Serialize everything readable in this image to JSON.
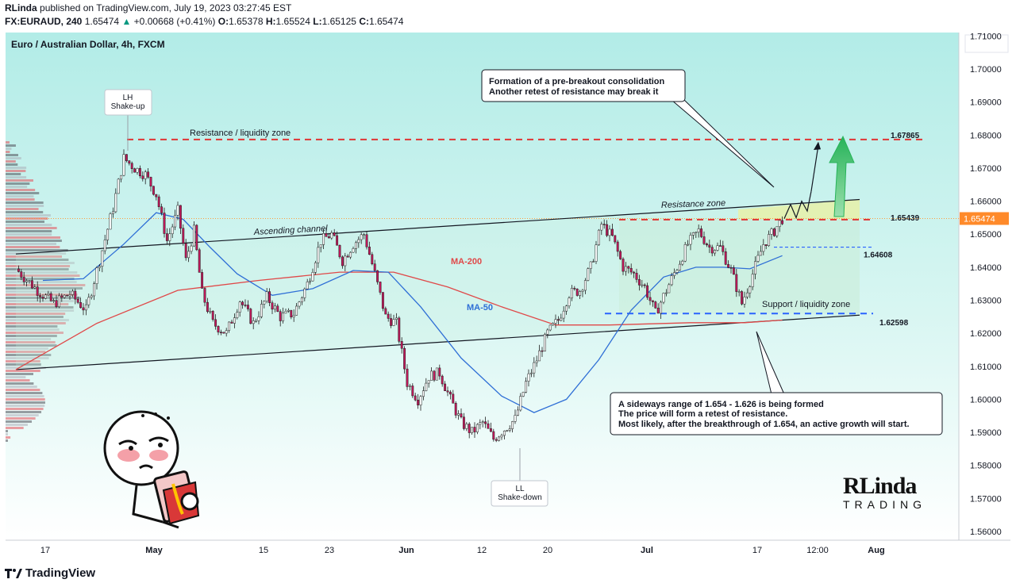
{
  "header": {
    "author": "RLinda",
    "published_text": "published on TradingView.com, July 19, 2023 03:27:45 EST",
    "symbol": "FX:EURAUD, 240",
    "last": "1.65474",
    "change": "+0.00668 (+0.41%)",
    "o_label": "O:",
    "o": "1.65378",
    "h_label": "H:",
    "h": "1.65524",
    "l_label": "L:",
    "l": "1.65125",
    "c_label": "C:",
    "c": "1.65474"
  },
  "footer": {
    "brand": "TradingView"
  },
  "logo": {
    "text_top": "RLinda",
    "text_bottom": "TRADING"
  },
  "chart_data": {
    "type": "candlestick",
    "title": "Euro / Australian Dollar, 4h, FXCM",
    "y_range": [
      1.555,
      1.715
    ],
    "y_ticks": [
      "1.71000",
      "1.70000",
      "1.69000",
      "1.68000",
      "1.67000",
      "1.66000",
      "1.65000",
      "1.64000",
      "1.63000",
      "1.62000",
      "1.61000",
      "1.60000",
      "1.59000",
      "1.58000",
      "1.57000",
      "1.56000"
    ],
    "x_ticks": [
      "17",
      "May",
      "15",
      "23",
      "Jun",
      "12",
      "20",
      "Jul",
      "17",
      "12:00",
      "Aug"
    ],
    "current_price": "1.65474",
    "levels": [
      {
        "name": "resistance",
        "value": "1.67865",
        "color": "#e03535"
      },
      {
        "name": "breakout",
        "value": "1.65439",
        "color": "#e03535"
      },
      {
        "name": "mid",
        "value": "1.64608",
        "color": "#2962ff"
      },
      {
        "name": "support",
        "value": "1.62598",
        "color": "#2962ff"
      }
    ],
    "anchor_points": [
      {
        "t": 0,
        "p": 1.6395
      },
      {
        "t": 8,
        "p": 1.633
      },
      {
        "t": 14,
        "p": 1.629
      },
      {
        "t": 20,
        "p": 1.632
      },
      {
        "t": 26,
        "p": 1.627
      },
      {
        "t": 31,
        "p": 1.642
      },
      {
        "t": 36,
        "p": 1.658
      },
      {
        "t": 40,
        "p": 1.673
      },
      {
        "t": 44,
        "p": 1.67
      },
      {
        "t": 48,
        "p": 1.668
      },
      {
        "t": 52,
        "p": 1.662
      },
      {
        "t": 56,
        "p": 1.648
      },
      {
        "t": 60,
        "p": 1.657
      },
      {
        "t": 63,
        "p": 1.642
      },
      {
        "t": 66,
        "p": 1.651
      },
      {
        "t": 69,
        "p": 1.632
      },
      {
        "t": 73,
        "p": 1.623
      },
      {
        "t": 78,
        "p": 1.62
      },
      {
        "t": 83,
        "p": 1.63
      },
      {
        "t": 88,
        "p": 1.623
      },
      {
        "t": 93,
        "p": 1.631
      },
      {
        "t": 98,
        "p": 1.625
      },
      {
        "t": 103,
        "p": 1.626
      },
      {
        "t": 108,
        "p": 1.635
      },
      {
        "t": 113,
        "p": 1.648
      },
      {
        "t": 117,
        "p": 1.65
      },
      {
        "t": 121,
        "p": 1.642
      },
      {
        "t": 125,
        "p": 1.647
      },
      {
        "t": 129,
        "p": 1.65
      },
      {
        "t": 133,
        "p": 1.638
      },
      {
        "t": 137,
        "p": 1.625
      },
      {
        "t": 141,
        "p": 1.623
      },
      {
        "t": 145,
        "p": 1.605
      },
      {
        "t": 149,
        "p": 1.6
      },
      {
        "t": 153,
        "p": 1.607
      },
      {
        "t": 157,
        "p": 1.608
      },
      {
        "t": 161,
        "p": 1.6
      },
      {
        "t": 165,
        "p": 1.593
      },
      {
        "t": 169,
        "p": 1.59
      },
      {
        "t": 173,
        "p": 1.593
      },
      {
        "t": 177,
        "p": 1.588
      },
      {
        "t": 181,
        "p": 1.591
      },
      {
        "t": 185,
        "p": 1.594
      },
      {
        "t": 189,
        "p": 1.605
      },
      {
        "t": 193,
        "p": 1.612
      },
      {
        "t": 197,
        "p": 1.62
      },
      {
        "t": 201,
        "p": 1.624
      },
      {
        "t": 205,
        "p": 1.632
      },
      {
        "t": 209,
        "p": 1.633
      },
      {
        "t": 213,
        "p": 1.64
      },
      {
        "t": 217,
        "p": 1.653
      },
      {
        "t": 221,
        "p": 1.649
      },
      {
        "t": 225,
        "p": 1.64
      },
      {
        "t": 229,
        "p": 1.638
      },
      {
        "t": 233,
        "p": 1.634
      },
      {
        "t": 237,
        "p": 1.626
      },
      {
        "t": 241,
        "p": 1.633
      },
      {
        "t": 245,
        "p": 1.64
      },
      {
        "t": 249,
        "p": 1.647
      },
      {
        "t": 253,
        "p": 1.651
      },
      {
        "t": 257,
        "p": 1.646
      },
      {
        "t": 261,
        "p": 1.646
      },
      {
        "t": 265,
        "p": 1.639
      },
      {
        "t": 269,
        "p": 1.629
      },
      {
        "t": 273,
        "p": 1.638
      },
      {
        "t": 277,
        "p": 1.647
      },
      {
        "t": 281,
        "p": 1.651
      },
      {
        "t": 284,
        "p": 1.6547
      }
    ],
    "ma200": [
      [
        0,
        1.609
      ],
      [
        30,
        1.623
      ],
      [
        60,
        1.633
      ],
      [
        90,
        1.636
      ],
      [
        120,
        1.6385
      ],
      [
        140,
        1.6385
      ],
      [
        160,
        1.634
      ],
      [
        180,
        1.628
      ],
      [
        200,
        1.6225
      ],
      [
        220,
        1.6225
      ],
      [
        250,
        1.6232
      ],
      [
        270,
        1.6232
      ],
      [
        284,
        1.624
      ]
    ],
    "ma50": [
      [
        10,
        1.636
      ],
      [
        25,
        1.6365
      ],
      [
        40,
        1.647
      ],
      [
        52,
        1.6565
      ],
      [
        62,
        1.6545
      ],
      [
        72,
        1.646
      ],
      [
        82,
        1.638
      ],
      [
        95,
        1.6315
      ],
      [
        110,
        1.6335
      ],
      [
        125,
        1.639
      ],
      [
        138,
        1.6385
      ],
      [
        150,
        1.628
      ],
      [
        165,
        1.6125
      ],
      [
        180,
        1.601
      ],
      [
        192,
        1.596
      ],
      [
        204,
        1.6
      ],
      [
        216,
        1.612
      ],
      [
        228,
        1.627
      ],
      [
        240,
        1.637
      ],
      [
        252,
        1.64
      ],
      [
        262,
        1.64
      ],
      [
        272,
        1.6395
      ],
      [
        284,
        1.6435
      ]
    ]
  },
  "annotations": {
    "lh": "LH\nShake-up",
    "ll": "LL\nShake-down",
    "resistance_liq": "Resistance / liquidity zone",
    "resistance_zone": "Resistance zone",
    "ascending": "Ascending channel",
    "support_liq": "Support / liquidity zone",
    "ma200_label": "MA-200",
    "ma50_label": "MA-50",
    "note_top_1": "Formation of a pre-breakout consolidation",
    "note_top_2": "Another retest of resistance may break it",
    "note_bottom_1": "A sideways range of 1.654 - 1.626 is being formed",
    "note_bottom_2": "The price will form a retest of resistance.",
    "note_bottom_3": "Most likely, after the breakthrough of 1.654, an active growth will start."
  },
  "colors": {
    "up": "#089981",
    "candle_body": "#c2185b",
    "ma200": "#e04848",
    "ma50": "#2f6fd6",
    "bg_top": "#b4ede8",
    "bg_bottom": "#ffffff"
  }
}
